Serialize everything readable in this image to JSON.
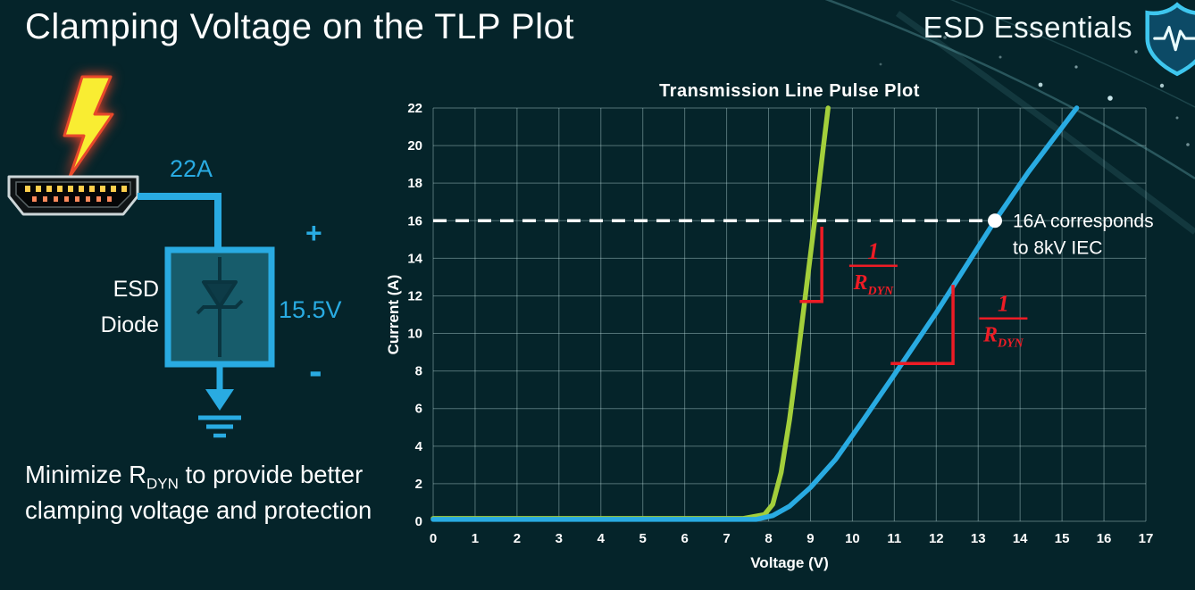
{
  "slide": {
    "title": "Clamping Voltage on the TLP Plot",
    "brand": "ESD Essentials"
  },
  "footer": {
    "part1": "Minimize R",
    "sub": "DYN",
    "part2": " to provide better clamping voltage and protection"
  },
  "diagram": {
    "surge_current": "22A",
    "device_line1": "ESD",
    "device_line2": "Diode",
    "plus": "+",
    "minus": "-",
    "clamp_voltage": "15.5V",
    "wire_color": "#29abe2",
    "bolt_color": "#f9ed32"
  },
  "chart_data": {
    "type": "line",
    "title": "Transmission Line Pulse Plot",
    "xlabel": "Voltage (V)",
    "ylabel": "Current (A)",
    "xlim": [
      0,
      17
    ],
    "ylim": [
      0,
      22
    ],
    "x_ticks": [
      0,
      1,
      2,
      3,
      4,
      5,
      6,
      7,
      8,
      9,
      10,
      11,
      12,
      13,
      14,
      15,
      16,
      17
    ],
    "y_ticks": [
      0,
      2,
      4,
      6,
      8,
      10,
      12,
      14,
      16,
      18,
      20,
      22
    ],
    "grid": true,
    "legend": "none",
    "colors": {
      "grid": "rgba(190,224,224,0.42)",
      "text": "#ffffff",
      "annotation": "#ee1c25",
      "reference": "#ffffff"
    },
    "series": [
      {
        "name": "green_curve_low_rdyn",
        "color": "#a3cf3b",
        "points": [
          [
            0,
            0.15
          ],
          [
            7.4,
            0.15
          ],
          [
            7.9,
            0.35
          ],
          [
            8.1,
            0.9
          ],
          [
            8.3,
            2.6
          ],
          [
            8.5,
            5.4
          ],
          [
            8.7,
            8.8
          ],
          [
            8.9,
            12.4
          ],
          [
            9.1,
            16.0
          ],
          [
            9.3,
            19.8
          ],
          [
            9.42,
            22
          ]
        ]
      },
      {
        "name": "blue_curve_high_rdyn",
        "color": "#29abe2",
        "points": [
          [
            0,
            0.1
          ],
          [
            7.7,
            0.1
          ],
          [
            8.1,
            0.3
          ],
          [
            8.5,
            0.8
          ],
          [
            9.0,
            1.8
          ],
          [
            9.6,
            3.3
          ],
          [
            10.2,
            5.2
          ],
          [
            11.0,
            7.8
          ],
          [
            12.0,
            11.1
          ],
          [
            13.0,
            14.6
          ],
          [
            13.4,
            16.0
          ],
          [
            14.2,
            18.6
          ],
          [
            15.35,
            22
          ]
        ]
      }
    ],
    "reference": {
      "y": 16,
      "x_end": 13.4,
      "marker": [
        13.4,
        16
      ],
      "label_line1": "16A corresponds",
      "label_line2": "to 8kV IEC"
    },
    "slope_annotations": [
      {
        "polyline": [
          [
            8.78,
            11.7
          ],
          [
            9.27,
            11.7
          ],
          [
            9.27,
            15.6
          ]
        ],
        "label_pos": [
          10.5,
          13.6
        ],
        "numerator": "1",
        "denominator": "R",
        "denominator_sub": "DYN"
      },
      {
        "polyline": [
          [
            10.95,
            8.4
          ],
          [
            12.4,
            8.4
          ],
          [
            12.4,
            12.5
          ]
        ],
        "label_pos": [
          13.6,
          10.8
        ],
        "numerator": "1",
        "denominator": "R",
        "denominator_sub": "DYN"
      }
    ]
  }
}
